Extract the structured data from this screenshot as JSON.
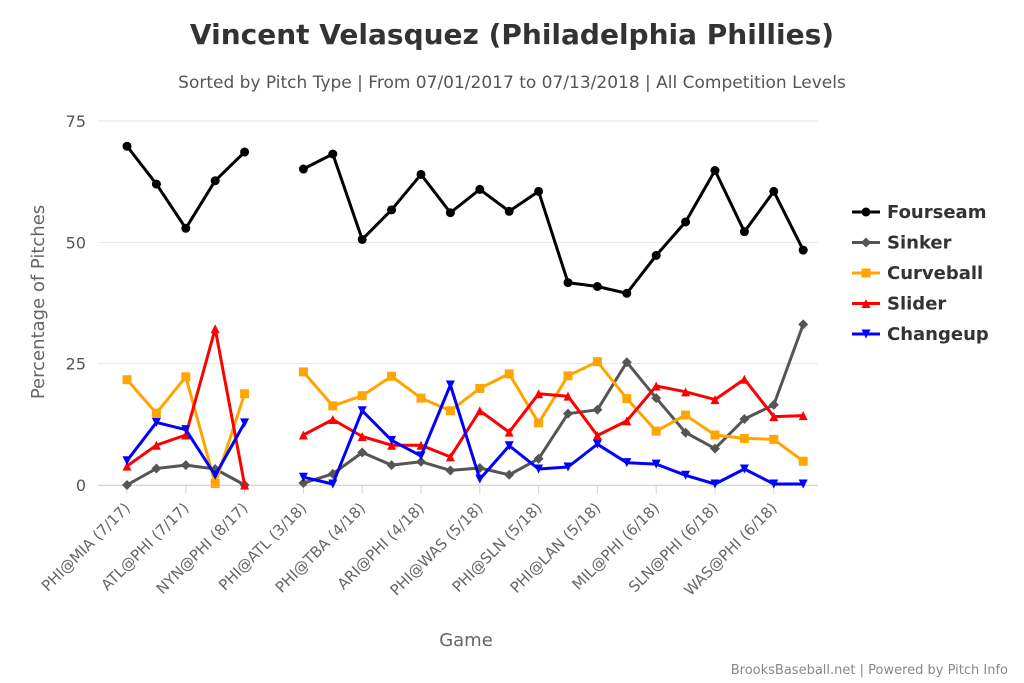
{
  "chart_data": {
    "type": "line",
    "title": "Vincent Velasquez (Philadelphia Phillies)",
    "subtitle": "Sorted by Pitch Type | From 07/01/2017 to 07/13/2018 | All Competition Levels",
    "xlabel": "Game",
    "ylabel": "Percentage of Pitches",
    "ylim": [
      0,
      75
    ],
    "yticks": [
      0,
      25,
      50,
      75
    ],
    "grid": true,
    "legend_position": "right",
    "credits": "BrooksBaseball.net | Powered by Pitch Info",
    "x_tick_labels": [
      {
        "index": 0,
        "label": "PHI@MIA (7/17)"
      },
      {
        "index": 2,
        "label": "ATL@PHI (7/17)"
      },
      {
        "index": 4,
        "label": "NYN@PHI (8/17)"
      },
      {
        "index": 6,
        "label": "PHI@ATL (3/18)"
      },
      {
        "index": 8,
        "label": "PHI@TBA (4/18)"
      },
      {
        "index": 10,
        "label": "ARI@PHI (4/18)"
      },
      {
        "index": 12,
        "label": "PHI@WAS (5/18)"
      },
      {
        "index": 14,
        "label": "PHI@SLN (5/18)"
      },
      {
        "index": 16,
        "label": "PHI@LAN (5/18)"
      },
      {
        "index": 18,
        "label": "MIL@PHI (6/18)"
      },
      {
        "index": 20,
        "label": "SLN@PHI (6/18)"
      },
      {
        "index": 22,
        "label": "WAS@PHI (6/18)"
      }
    ],
    "series": [
      {
        "name": "Fourseam",
        "color": "#000000",
        "marker": "circle",
        "values": [
          69.8,
          62.0,
          52.9,
          62.7,
          68.6,
          null,
          65.1,
          68.2,
          50.6,
          56.7,
          64.0,
          56.1,
          60.9,
          56.4,
          60.5,
          41.7,
          40.9,
          39.5,
          47.3,
          54.2,
          64.8,
          52.2,
          60.5,
          48.4
        ]
      },
      {
        "name": "Sinker",
        "color": "#555555",
        "marker": "diamond",
        "values": [
          0.0,
          3.4,
          4.1,
          3.3,
          0.0,
          null,
          0.4,
          2.3,
          6.7,
          4.1,
          4.8,
          3.0,
          3.5,
          2.1,
          5.4,
          14.7,
          15.5,
          25.3,
          17.9,
          10.8,
          7.5,
          13.6,
          16.5,
          33.1
        ]
      },
      {
        "name": "Curveball",
        "color": "#FFA500",
        "marker": "square",
        "values": [
          21.7,
          14.8,
          22.3,
          0.3,
          18.8,
          null,
          23.3,
          16.3,
          18.4,
          22.4,
          17.9,
          15.3,
          19.9,
          22.9,
          12.8,
          22.5,
          25.4,
          17.8,
          11.1,
          14.4,
          10.3,
          9.6,
          9.4,
          4.9
        ]
      },
      {
        "name": "Slider",
        "color": "#FF0000",
        "marker": "triangle-up",
        "values": [
          3.9,
          8.2,
          10.3,
          32.2,
          0.0,
          null,
          10.3,
          13.5,
          10.0,
          8.2,
          8.2,
          5.8,
          15.3,
          10.9,
          18.8,
          18.3,
          10.2,
          13.2,
          20.4,
          19.2,
          17.6,
          21.8,
          14.1,
          14.3
        ]
      },
      {
        "name": "Changeup",
        "color": "#0000FF",
        "marker": "triangle-down",
        "values": [
          5.0,
          12.9,
          11.4,
          2.0,
          12.8,
          null,
          1.6,
          0.2,
          15.3,
          9.2,
          6.0,
          20.6,
          1.2,
          8.1,
          3.3,
          3.7,
          8.4,
          4.6,
          4.3,
          2.0,
          0.2,
          3.3,
          0.2,
          0.2
        ]
      }
    ]
  }
}
